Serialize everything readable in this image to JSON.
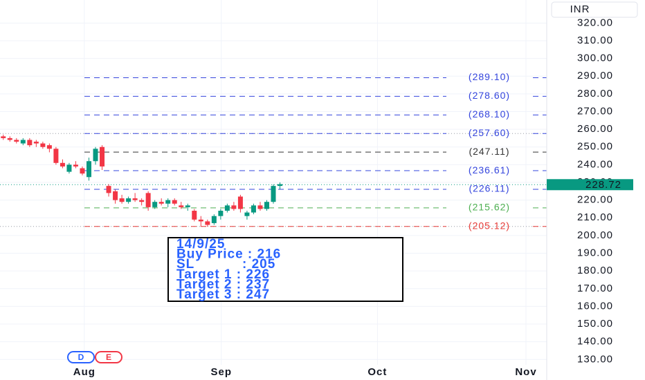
{
  "chart_data": {
    "type": "candlestick",
    "currency": "INR",
    "xlim": [
      -0.5,
      82.5
    ],
    "ylim": [
      127,
      333
    ],
    "xticks": [
      {
        "value": 12.3,
        "label": "Aug"
      },
      {
        "value": 33.1,
        "label": "Sep"
      },
      {
        "value": 56.8,
        "label": "Oct"
      },
      {
        "value": 79.35,
        "label": "Nov"
      }
    ],
    "yticks": [
      {
        "value": 130,
        "label": "130.00"
      },
      {
        "value": 140,
        "label": "140.00"
      },
      {
        "value": 150,
        "label": "150.00"
      },
      {
        "value": 160,
        "label": "160.00"
      },
      {
        "value": 170,
        "label": "170.00"
      },
      {
        "value": 180,
        "label": "180.00"
      },
      {
        "value": 190,
        "label": "190.00"
      },
      {
        "value": 200,
        "label": "200.00"
      },
      {
        "value": 210,
        "label": "210.00"
      },
      {
        "value": 220,
        "label": "220.00"
      },
      {
        "value": 230,
        "label": "230.00"
      },
      {
        "value": 240,
        "label": "240.00"
      },
      {
        "value": 250,
        "label": "250.00"
      },
      {
        "value": 260,
        "label": "260.00"
      },
      {
        "value": 270,
        "label": "270.00"
      },
      {
        "value": 280,
        "label": "280.00"
      },
      {
        "value": 290,
        "label": "290.00"
      },
      {
        "value": 300,
        "label": "300.00"
      },
      {
        "value": 310,
        "label": "310.00"
      },
      {
        "value": 320,
        "label": "320.00"
      }
    ],
    "grid": true,
    "up_color": "#089981",
    "down_color": "#f23645",
    "open": [
      256,
      255,
      254,
      252,
      254,
      253,
      252,
      251,
      249,
      241,
      236,
      240,
      238,
      233,
      242,
      250,
      228,
      225,
      221,
      219,
      221,
      220,
      224,
      216,
      219,
      218,
      220,
      217,
      216,
      214,
      209,
      208,
      207,
      211,
      214,
      217,
      222,
      211,
      213,
      217,
      215,
      219,
      228
    ],
    "high": [
      257,
      256,
      255,
      255,
      255,
      254,
      253,
      252,
      250,
      243,
      241,
      242,
      239,
      244,
      250,
      251,
      229,
      226,
      223,
      222,
      224,
      221,
      225,
      220,
      221,
      221,
      221,
      219,
      218,
      215,
      211,
      209,
      212,
      215,
      218,
      219,
      223,
      214,
      218,
      219,
      220,
      229,
      230
    ],
    "low": [
      254,
      253,
      252,
      251,
      250,
      250,
      249,
      247,
      240,
      238,
      235,
      238,
      234,
      231,
      240,
      237,
      222,
      218,
      218,
      218,
      219,
      217,
      214,
      215,
      217,
      216,
      217,
      215,
      214,
      208,
      205,
      205,
      206,
      209,
      213,
      214,
      213,
      209,
      212,
      214,
      214,
      218,
      226
    ],
    "close": [
      255,
      254,
      253,
      254,
      251,
      252,
      250,
      249,
      241,
      239,
      240,
      239,
      235,
      242,
      249,
      239,
      224,
      220,
      219,
      221,
      220,
      219,
      216,
      219,
      218,
      220,
      218,
      216,
      217,
      209,
      208,
      206,
      211,
      214,
      217,
      215,
      215,
      213,
      217,
      215,
      219,
      228,
      229
    ],
    "last_price": {
      "value": 228.72,
      "label": "228.72",
      "color": "#089981"
    },
    "levels": [
      {
        "value": 289.1,
        "label": "(289.10)",
        "color": "#3344dd"
      },
      {
        "value": 278.6,
        "label": "(278.60)",
        "color": "#3344dd"
      },
      {
        "value": 268.1,
        "label": "(268.10)",
        "color": "#3344dd"
      },
      {
        "value": 257.6,
        "label": "(257.60)",
        "color": "#3344dd",
        "extended": true
      },
      {
        "value": 247.11,
        "label": "(247.11)",
        "color": "#333333"
      },
      {
        "value": 236.61,
        "label": "(236.61)",
        "color": "#3344dd"
      },
      {
        "value": 226.11,
        "label": "(226.11)",
        "color": "#3344dd"
      },
      {
        "value": 215.62,
        "label": "(215.62)",
        "color": "#4caf50"
      },
      {
        "value": 205.12,
        "label": "(205.12)",
        "color": "#e53935",
        "extended": true
      }
    ],
    "note": [
      "14/9/25",
      "Buy Price : 216",
      "SL           : 205",
      "Target 1 : 226",
      "Target 2 : 237",
      "Target 3 : 247"
    ],
    "events": [
      "D",
      "E"
    ]
  }
}
